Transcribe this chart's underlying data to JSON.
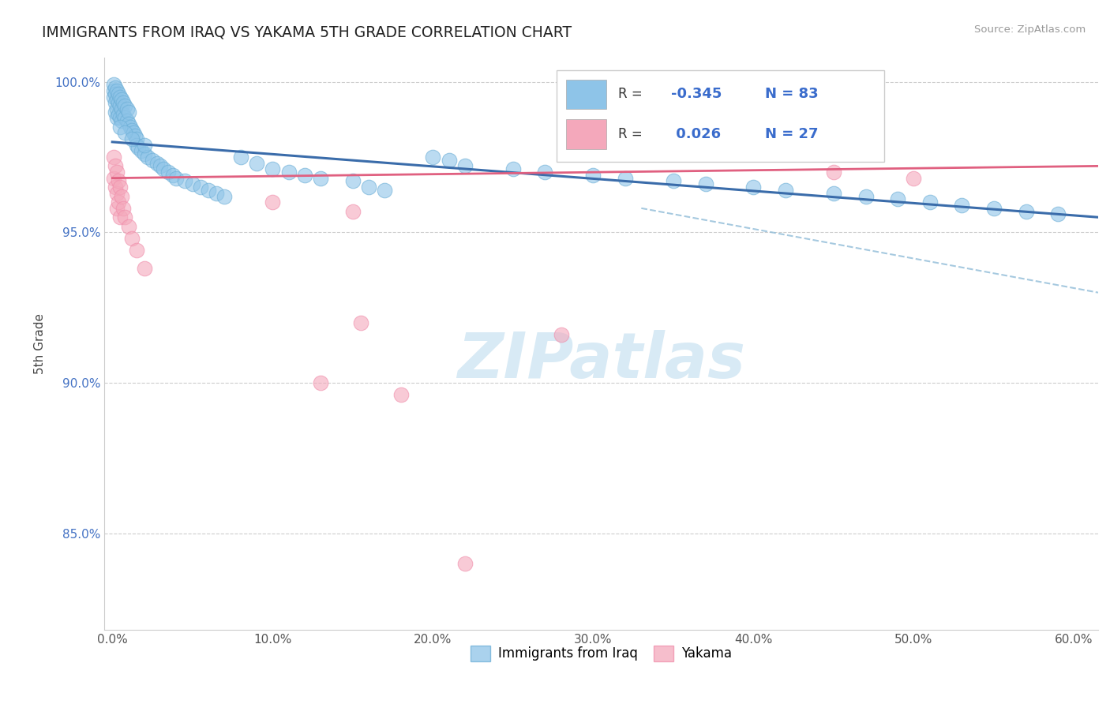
{
  "title": "IMMIGRANTS FROM IRAQ VS YAKAMA 5TH GRADE CORRELATION CHART",
  "source_text": "Source: ZipAtlas.com",
  "ylabel": "5th Grade",
  "xlim": [
    -0.005,
    0.615
  ],
  "ylim": [
    0.818,
    1.008
  ],
  "xticks": [
    0.0,
    0.1,
    0.2,
    0.3,
    0.4,
    0.5,
    0.6
  ],
  "xticklabels": [
    "0.0%",
    "10.0%",
    "20.0%",
    "30.0%",
    "40.0%",
    "50.0%",
    "60.0%"
  ],
  "yticks": [
    0.85,
    0.9,
    0.95,
    1.0
  ],
  "yticklabels": [
    "85.0%",
    "90.0%",
    "95.0%",
    "100.0%"
  ],
  "legend_blue_label": "Immigrants from Iraq",
  "legend_pink_label": "Yakama",
  "blue_R": "-0.345",
  "blue_N": "83",
  "pink_R": "0.026",
  "pink_N": "27",
  "blue_color": "#8ec4e8",
  "pink_color": "#f4a8bb",
  "blue_edge_color": "#6baed6",
  "pink_edge_color": "#f08caa",
  "blue_line_color": "#3a6caa",
  "pink_line_color": "#e06080",
  "dashed_line_color": "#90bcd8",
  "watermark_color": "#d8eaf5",
  "blue_line": [
    0.0,
    0.615,
    0.98,
    0.955
  ],
  "pink_line": [
    0.0,
    0.615,
    0.968,
    0.972
  ],
  "dashed_line": [
    0.33,
    0.615,
    0.958,
    0.93
  ],
  "blue_x": [
    0.001,
    0.001,
    0.001,
    0.002,
    0.002,
    0.002,
    0.002,
    0.003,
    0.003,
    0.003,
    0.003,
    0.004,
    0.004,
    0.004,
    0.005,
    0.005,
    0.005,
    0.006,
    0.006,
    0.006,
    0.007,
    0.007,
    0.008,
    0.008,
    0.009,
    0.009,
    0.01,
    0.01,
    0.011,
    0.012,
    0.013,
    0.014,
    0.015,
    0.015,
    0.016,
    0.018,
    0.02,
    0.022,
    0.025,
    0.028,
    0.03,
    0.032,
    0.035,
    0.038,
    0.04,
    0.045,
    0.05,
    0.055,
    0.06,
    0.065,
    0.07,
    0.08,
    0.09,
    0.1,
    0.11,
    0.12,
    0.13,
    0.15,
    0.16,
    0.17,
    0.2,
    0.21,
    0.22,
    0.25,
    0.27,
    0.3,
    0.32,
    0.35,
    0.37,
    0.4,
    0.42,
    0.45,
    0.47,
    0.49,
    0.51,
    0.53,
    0.55,
    0.57,
    0.59,
    0.005,
    0.008,
    0.012,
    0.02
  ],
  "blue_y": [
    0.999,
    0.997,
    0.995,
    0.998,
    0.996,
    0.993,
    0.99,
    0.997,
    0.994,
    0.991,
    0.988,
    0.996,
    0.993,
    0.989,
    0.995,
    0.992,
    0.988,
    0.994,
    0.991,
    0.987,
    0.993,
    0.989,
    0.992,
    0.988,
    0.991,
    0.987,
    0.99,
    0.986,
    0.985,
    0.984,
    0.983,
    0.982,
    0.981,
    0.979,
    0.978,
    0.977,
    0.976,
    0.975,
    0.974,
    0.973,
    0.972,
    0.971,
    0.97,
    0.969,
    0.968,
    0.967,
    0.966,
    0.965,
    0.964,
    0.963,
    0.962,
    0.975,
    0.973,
    0.971,
    0.97,
    0.969,
    0.968,
    0.967,
    0.965,
    0.964,
    0.975,
    0.974,
    0.972,
    0.971,
    0.97,
    0.969,
    0.968,
    0.967,
    0.966,
    0.965,
    0.964,
    0.963,
    0.962,
    0.961,
    0.96,
    0.959,
    0.958,
    0.957,
    0.956,
    0.985,
    0.983,
    0.981,
    0.979
  ],
  "pink_x": [
    0.001,
    0.001,
    0.002,
    0.002,
    0.003,
    0.003,
    0.003,
    0.004,
    0.004,
    0.005,
    0.005,
    0.006,
    0.007,
    0.008,
    0.01,
    0.012,
    0.015,
    0.02,
    0.1,
    0.15,
    0.155,
    0.28,
    0.45,
    0.5,
    0.13,
    0.18,
    0.22
  ],
  "pink_y": [
    0.975,
    0.968,
    0.972,
    0.965,
    0.97,
    0.963,
    0.958,
    0.967,
    0.96,
    0.965,
    0.955,
    0.962,
    0.958,
    0.955,
    0.952,
    0.948,
    0.944,
    0.938,
    0.96,
    0.957,
    0.92,
    0.916,
    0.97,
    0.968,
    0.9,
    0.896,
    0.84
  ]
}
